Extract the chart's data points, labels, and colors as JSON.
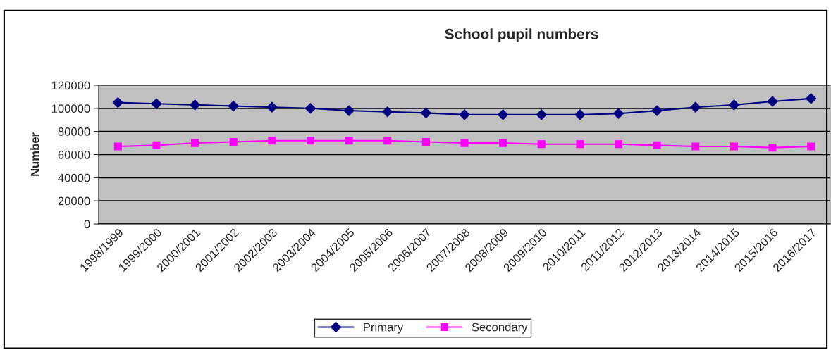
{
  "chart_data": {
    "type": "line",
    "title": "School pupil numbers",
    "ylabel": "Number",
    "categories": [
      "1998/1999",
      "1999/2000",
      "2000/2001",
      "2001/2002",
      "2002/2003",
      "2003/2004",
      "2004/2005",
      "2005/2006",
      "2006/2007",
      "2007/2008",
      "2008/2009",
      "2009/2010",
      "2010/2011",
      "2011/2012",
      "2012/2013",
      "2013/2014",
      "2014/2015",
      "2015/2016",
      "2016/2017"
    ],
    "series": [
      {
        "name": "Primary",
        "color": "#000080",
        "marker": "diamond",
        "values": [
          105000,
          104000,
          103000,
          102000,
          101000,
          100000,
          98000,
          97000,
          96000,
          94500,
          94500,
          94500,
          94500,
          95500,
          98000,
          101000,
          103000,
          106000,
          108500
        ]
      },
      {
        "name": "Secondary",
        "color": "#ff00ff",
        "marker": "square",
        "values": [
          67000,
          68000,
          70000,
          71000,
          72000,
          72000,
          72000,
          72000,
          71000,
          70000,
          70000,
          69000,
          69000,
          69000,
          68000,
          67000,
          67000,
          66000,
          67000
        ]
      }
    ],
    "ylim": [
      0,
      120000
    ],
    "yticks": [
      0,
      20000,
      40000,
      60000,
      80000,
      100000,
      120000
    ],
    "grid": "y",
    "legend": "bottom"
  }
}
